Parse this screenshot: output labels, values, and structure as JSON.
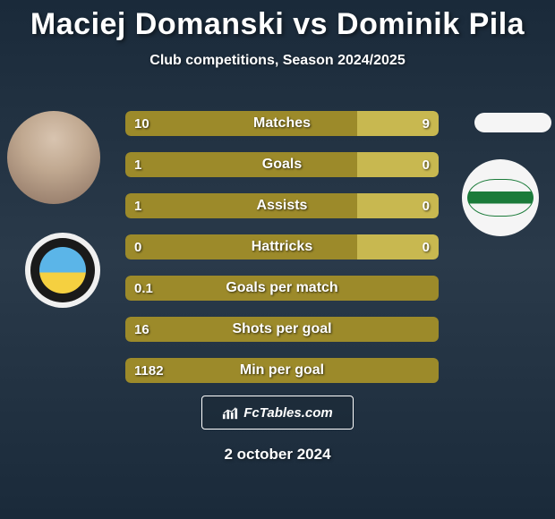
{
  "title": "Maciej Domanski vs Dominik Pila",
  "subtitle": "Club competitions, Season 2024/2025",
  "footer_date": "2 october 2024",
  "footer_brand": "FcTables.com",
  "colors": {
    "bar_left": "#9c8a2a",
    "bar_right": "#c8b850",
    "text": "#ffffff"
  },
  "stats": [
    {
      "label": "Matches",
      "left_val": "10",
      "right_val": "9",
      "left_pct": 74,
      "right_pct": 26
    },
    {
      "label": "Goals",
      "left_val": "1",
      "right_val": "0",
      "left_pct": 74,
      "right_pct": 26
    },
    {
      "label": "Assists",
      "left_val": "1",
      "right_val": "0",
      "left_pct": 74,
      "right_pct": 26
    },
    {
      "label": "Hattricks",
      "left_val": "0",
      "right_val": "0",
      "left_pct": 74,
      "right_pct": 26
    },
    {
      "label": "Goals per match",
      "left_val": "0.1",
      "right_val": "",
      "left_pct": 100,
      "right_pct": 0
    },
    {
      "label": "Shots per goal",
      "left_val": "16",
      "right_val": "",
      "left_pct": 100,
      "right_pct": 0
    },
    {
      "label": "Min per goal",
      "left_val": "1182",
      "right_val": "",
      "left_pct": 100,
      "right_pct": 0
    }
  ]
}
